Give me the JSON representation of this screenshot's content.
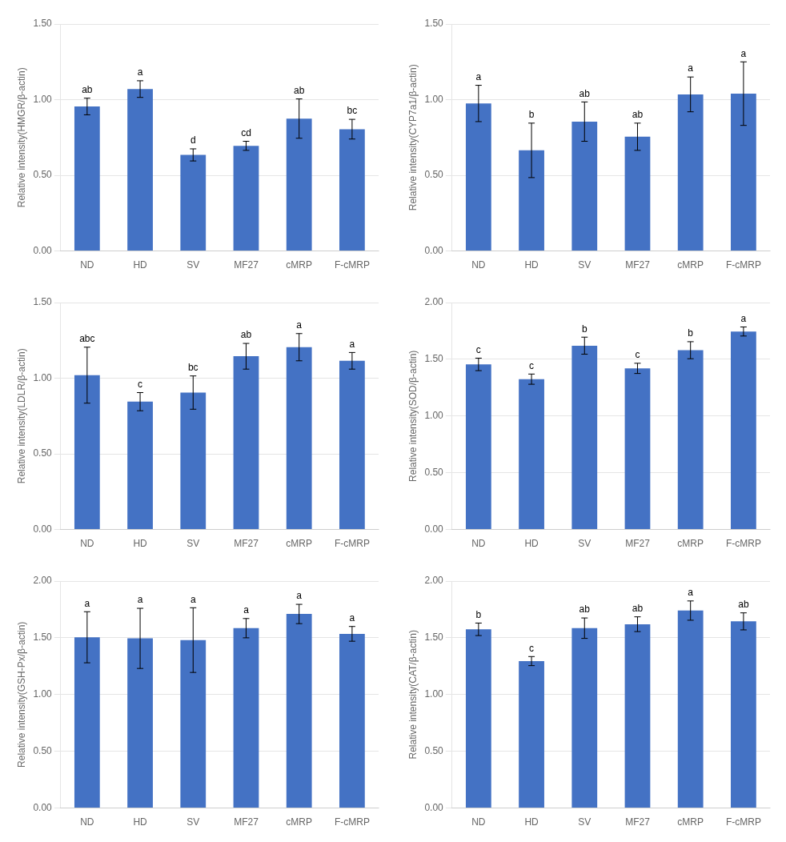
{
  "chart_data": [
    {
      "type": "bar",
      "ylabel": "Relative intensity(HMGR/β-actin)",
      "categories": [
        "ND",
        "HD",
        "SV",
        "MF27",
        "cMRP",
        "F-cMRP"
      ],
      "values": [
        0.955,
        1.07,
        0.635,
        0.695,
        0.875,
        0.805
      ],
      "errors": [
        0.055,
        0.055,
        0.04,
        0.03,
        0.13,
        0.065
      ],
      "letters": [
        "ab",
        "a",
        "d",
        "cd",
        "ab",
        "bc"
      ],
      "color": "#4472C4",
      "ylim": [
        0.0,
        1.5
      ],
      "yticks": [
        {
          "value": 0.0,
          "label": "0.00"
        },
        {
          "value": 0.5,
          "label": "0.50"
        },
        {
          "value": 1.0,
          "label": "1.00"
        },
        {
          "value": 1.5,
          "label": "1.50"
        }
      ],
      "grid": true
    },
    {
      "type": "bar",
      "ylabel": "Relative intensity(CYP7a1/β-actin)",
      "categories": [
        "ND",
        "HD",
        "SV",
        "MF27",
        "cMRP",
        "F-cMRP"
      ],
      "values": [
        0.975,
        0.665,
        0.855,
        0.755,
        1.035,
        1.04
      ],
      "errors": [
        0.12,
        0.18,
        0.13,
        0.09,
        0.115,
        0.21
      ],
      "letters": [
        "a",
        "b",
        "ab",
        "ab",
        "a",
        "a"
      ],
      "color": "#4472C4",
      "ylim": [
        0.0,
        1.5
      ],
      "yticks": [
        {
          "value": 0.0,
          "label": "0.00"
        },
        {
          "value": 0.5,
          "label": "0.50"
        },
        {
          "value": 1.0,
          "label": "1.00"
        },
        {
          "value": 1.5,
          "label": "1.50"
        }
      ],
      "grid": true
    },
    {
      "type": "bar",
      "ylabel": "Relative intensity(LDLR/β-actin)",
      "categories": [
        "ND",
        "HD",
        "SV",
        "MF27",
        "cMRP",
        "F-cMRP"
      ],
      "values": [
        1.02,
        0.845,
        0.905,
        1.145,
        1.205,
        1.115
      ],
      "errors": [
        0.185,
        0.06,
        0.11,
        0.085,
        0.09,
        0.055
      ],
      "letters": [
        "abc",
        "c",
        "bc",
        "ab",
        "a",
        "a"
      ],
      "color": "#4472C4",
      "ylim": [
        0.0,
        1.5
      ],
      "yticks": [
        {
          "value": 0.0,
          "label": "0.00"
        },
        {
          "value": 0.5,
          "label": "0.50"
        },
        {
          "value": 1.0,
          "label": "1.00"
        },
        {
          "value": 1.5,
          "label": "1.50"
        }
      ],
      "grid": true
    },
    {
      "type": "bar",
      "ylabel": "Relative intensity(SOD/β-actin)",
      "categories": [
        "ND",
        "HD",
        "SV",
        "MF27",
        "cMRP",
        "F-cMRP"
      ],
      "values": [
        1.455,
        1.325,
        1.62,
        1.42,
        1.58,
        1.745
      ],
      "errors": [
        0.055,
        0.045,
        0.075,
        0.045,
        0.075,
        0.04
      ],
      "letters": [
        "c",
        "c",
        "b",
        "c",
        "b",
        "a"
      ],
      "color": "#4472C4",
      "ylim": [
        0.0,
        2.0
      ],
      "yticks": [
        {
          "value": 0.0,
          "label": "0.00"
        },
        {
          "value": 0.5,
          "label": "0.50"
        },
        {
          "value": 1.0,
          "label": "1.00"
        },
        {
          "value": 1.5,
          "label": "1.50"
        },
        {
          "value": 2.0,
          "label": "2.00"
        }
      ],
      "grid": true
    },
    {
      "type": "bar",
      "ylabel": "Relative intensity(GSH-Px/β-actin)",
      "categories": [
        "ND",
        "HD",
        "SV",
        "MF27",
        "cMRP",
        "F-cMRP"
      ],
      "values": [
        1.505,
        1.495,
        1.48,
        1.585,
        1.71,
        1.535
      ],
      "errors": [
        0.225,
        0.265,
        0.285,
        0.085,
        0.085,
        0.065
      ],
      "letters": [
        "a",
        "a",
        "a",
        "a",
        "a",
        "a"
      ],
      "color": "#4472C4",
      "ylim": [
        0.0,
        2.0
      ],
      "yticks": [
        {
          "value": 0.0,
          "label": "0.00"
        },
        {
          "value": 0.5,
          "label": "0.50"
        },
        {
          "value": 1.0,
          "label": "1.00"
        },
        {
          "value": 1.5,
          "label": "1.50"
        },
        {
          "value": 2.0,
          "label": "2.00"
        }
      ],
      "grid": true
    },
    {
      "type": "bar",
      "ylabel": "Relative intensity(CAT/β-actin)",
      "categories": [
        "ND",
        "HD",
        "SV",
        "MF27",
        "cMRP",
        "F-cMRP"
      ],
      "values": [
        1.575,
        1.295,
        1.585,
        1.62,
        1.74,
        1.645
      ],
      "errors": [
        0.055,
        0.04,
        0.09,
        0.065,
        0.085,
        0.075
      ],
      "letters": [
        "b",
        "c",
        "ab",
        "ab",
        "a",
        "ab"
      ],
      "color": "#4472C4",
      "ylim": [
        0.0,
        2.0
      ],
      "yticks": [
        {
          "value": 0.0,
          "label": "0.00"
        },
        {
          "value": 0.5,
          "label": "0.50"
        },
        {
          "value": 1.0,
          "label": "1.00"
        },
        {
          "value": 1.5,
          "label": "1.50"
        },
        {
          "value": 2.0,
          "label": "2.00"
        }
      ],
      "grid": true
    }
  ]
}
